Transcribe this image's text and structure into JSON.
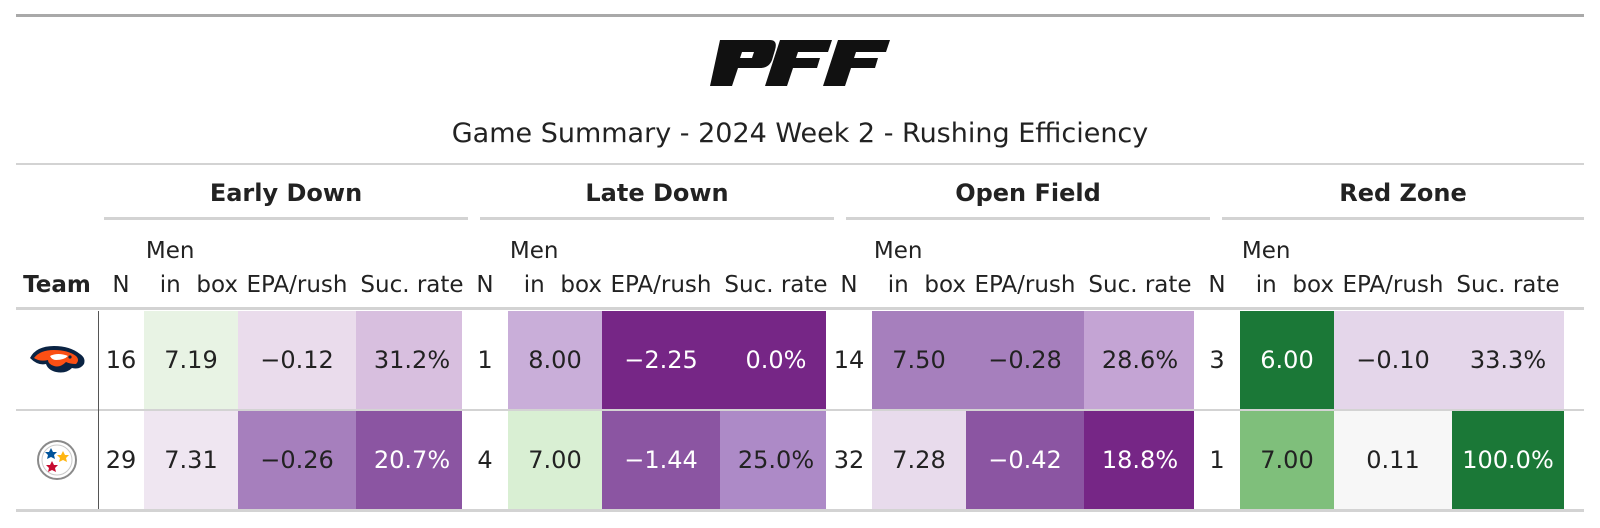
{
  "title": "Game Summary - 2024 Week 2 - Rushing Efficiency",
  "logo": "PFF",
  "groups": [
    "Early Down",
    "Late Down",
    "Open Field",
    "Red Zone"
  ],
  "headers": {
    "team": "Team",
    "n": "N",
    "men_line1": "Men in",
    "men_line2": "box",
    "epa": "EPA/rush",
    "suc": "Suc. rate"
  },
  "teams": [
    {
      "logo_icon": "broncos-logo-icon",
      "cells": [
        [
          "16",
          "7.19",
          "−0.12",
          "31.2%"
        ],
        [
          "1",
          "8.00",
          "−2.25",
          "0.0%"
        ],
        [
          "14",
          "7.50",
          "−0.28",
          "28.6%"
        ],
        [
          "3",
          "6.00",
          "−0.10",
          "33.3%"
        ]
      ],
      "colors": [
        [
          "#ffffff",
          "#e8f3e4",
          "#eadcec",
          "#d8bfdf"
        ],
        [
          "#ffffff",
          "#c9aed9",
          "#762686",
          "#762686"
        ],
        [
          "#ffffff",
          "#a67fbd",
          "#a67fbd",
          "#c4a4d4"
        ],
        [
          "#ffffff",
          "#1b7837",
          "#e4d6ea",
          "#e4d6ea"
        ]
      ]
    },
    {
      "logo_icon": "steelers-logo-icon",
      "cells": [
        [
          "29",
          "7.31",
          "−0.26",
          "20.7%"
        ],
        [
          "4",
          "7.00",
          "−1.44",
          "25.0%"
        ],
        [
          "32",
          "7.28",
          "−0.42",
          "18.8%"
        ],
        [
          "1",
          "7.00",
          "0.11",
          "100.0%"
        ]
      ],
      "colors": [
        [
          "#ffffff",
          "#efe6f1",
          "#a67fbd",
          "#8b55a2"
        ],
        [
          "#ffffff",
          "#d9efd3",
          "#8b55a2",
          "#ad8ac7"
        ],
        [
          "#ffffff",
          "#e8dbec",
          "#8b55a2",
          "#762686"
        ],
        [
          "#ffffff",
          "#7fbf7b",
          "#f7f7f7",
          "#1b7837"
        ]
      ]
    }
  ]
}
